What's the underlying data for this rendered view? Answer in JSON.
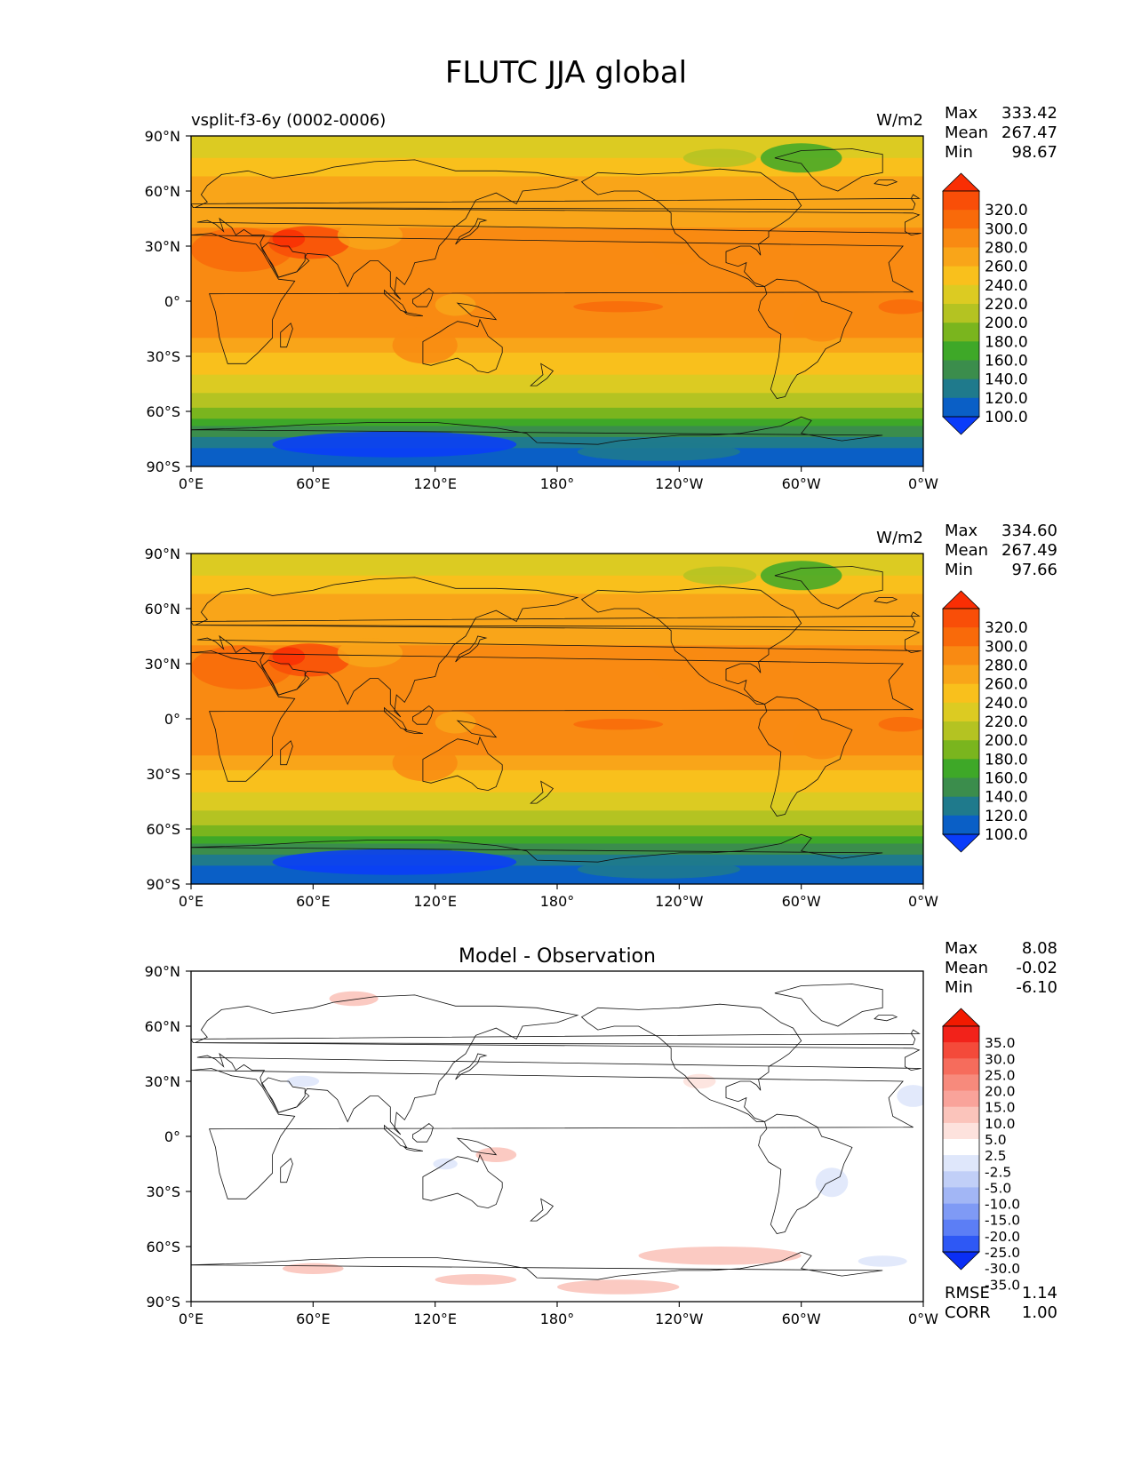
{
  "figure": {
    "title": "FLUTC JJA global"
  },
  "axes": {
    "lat_ticks": [
      "90°N",
      "60°N",
      "30°N",
      "0°",
      "30°S",
      "60°S",
      "90°S"
    ],
    "lon_ticks": [
      "0°E",
      "60°E",
      "120°E",
      "180°",
      "120°W",
      "60°W",
      "0°W"
    ]
  },
  "panels": [
    {
      "id": "test",
      "left_title": "vsplit-f3-6y (0002-0006)",
      "center_title": "",
      "units": "W/m2",
      "stats": {
        "max_label": "Max",
        "max": "333.42",
        "mean_label": "Mean",
        "mean": "267.47",
        "min_label": "Min",
        "min": "98.67"
      },
      "colorbar_labels": [
        "320.0",
        "300.0",
        "280.0",
        "260.0",
        "240.0",
        "220.0",
        "200.0",
        "180.0",
        "160.0",
        "140.0",
        "120.0",
        "100.0"
      ]
    },
    {
      "id": "reference",
      "left_title": "",
      "center_title": "",
      "units": "W/m2",
      "stats": {
        "max_label": "Max",
        "max": "334.60",
        "mean_label": "Mean",
        "mean": "267.49",
        "min_label": "Min",
        "min": "97.66"
      },
      "colorbar_labels": [
        "320.0",
        "300.0",
        "280.0",
        "260.0",
        "240.0",
        "220.0",
        "200.0",
        "180.0",
        "160.0",
        "140.0",
        "120.0",
        "100.0"
      ]
    },
    {
      "id": "difference",
      "left_title": "",
      "center_title": "Model - Observation",
      "units": "",
      "stats": {
        "max_label": "Max",
        "max": "8.08",
        "mean_label": "Mean",
        "mean": "-0.02",
        "min_label": "Min",
        "min": "-6.10"
      },
      "colorbar_labels": [
        "35.0",
        "30.0",
        "25.0",
        "20.0",
        "15.0",
        "10.0",
        "5.0",
        "2.5",
        "-2.5",
        "-5.0",
        "-10.0",
        "-15.0",
        "-20.0",
        "-25.0",
        "-30.0",
        "-35.0"
      ],
      "rmse_label": "RMSE",
      "rmse": "1.14",
      "corr_label": "CORR",
      "corr": "1.00"
    }
  ],
  "colors": {
    "abs_scale": [
      "#0a3cfa",
      "#0a5fc6",
      "#1f7a8c",
      "#3b8d4c",
      "#3ea828",
      "#7ab51e",
      "#b4c322",
      "#dccb22",
      "#f9c01c",
      "#f9a519",
      "#f98a12",
      "#f96a0a",
      "#f94e08",
      "#f92e04"
    ],
    "diff_scale": [
      "#0a2ef5",
      "#2e58f5",
      "#5c7ef5",
      "#7f9af5",
      "#a2b6f5",
      "#c1cff7",
      "#dfe7fb",
      "#ffffff",
      "#fde2dd",
      "#fbc4bb",
      "#f9a39a",
      "#f78a7c",
      "#f66c5c",
      "#f44a3a",
      "#f2221a",
      "#f21a00"
    ]
  }
}
